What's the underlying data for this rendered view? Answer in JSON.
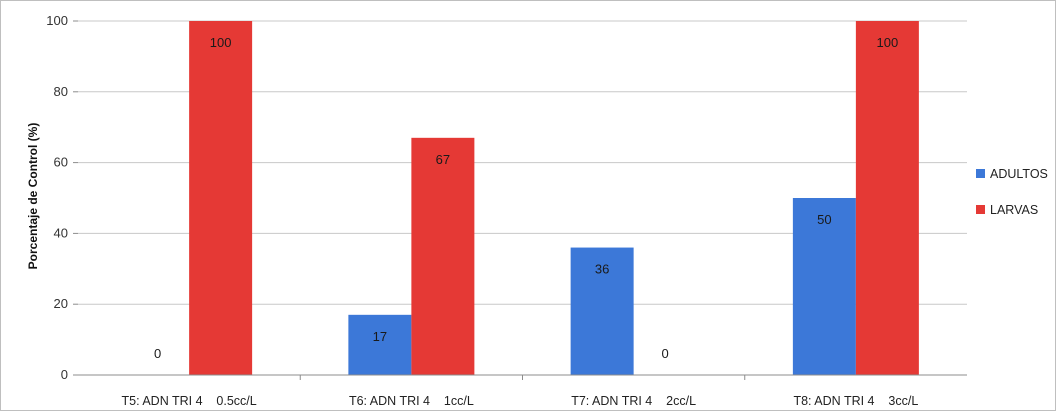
{
  "chart_data": {
    "type": "bar",
    "title": "",
    "xlabel": "",
    "ylabel": "Porcentaje de Control (%)",
    "ylim": [
      0,
      100
    ],
    "yticks": [
      0,
      20,
      40,
      60,
      80,
      100
    ],
    "grid": true,
    "legend_position": "right",
    "categories": [
      "T5: ADN TRI 4    0.5cc/L",
      "T6: ADN TRI 4    1cc/L",
      "T7: ADN TRI 4    2cc/L",
      "T8: ADN TRI 4    3cc/L"
    ],
    "series": [
      {
        "name": "ADULTOS",
        "color": "#3c78d8",
        "values": [
          0,
          17,
          36,
          50
        ]
      },
      {
        "name": "LARVAS",
        "color": "#e53935",
        "values": [
          100,
          67,
          0,
          100
        ]
      }
    ]
  }
}
